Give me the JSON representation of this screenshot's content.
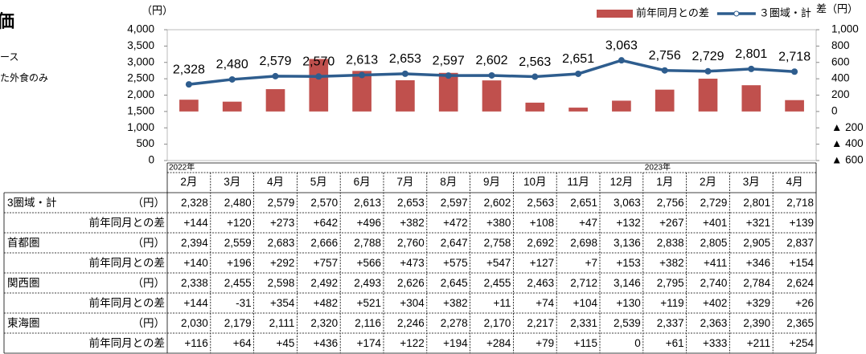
{
  "page_text": {
    "title_fragment": "価",
    "line1": "ース",
    "line2": "た外食のみ"
  },
  "chart_data": {
    "type": "combo",
    "legend": "top-right",
    "y_label": "（円）",
    "y2_label": "差（円）",
    "categories": [
      "2月",
      "3月",
      "4月",
      "5月",
      "6月",
      "7月",
      "8月",
      "9月",
      "10月",
      "11月",
      "12月",
      "1月",
      "2月",
      "3月",
      "4月"
    ],
    "ylim": [
      0,
      4000
    ],
    "yticks": [
      0,
      500,
      {
        "value": 1000,
        "label": "1,000"
      },
      {
        "value": 1500,
        "label": "1,500"
      },
      {
        "value": 2000,
        "label": "2,000"
      },
      {
        "value": 2500,
        "label": "2,500"
      },
      {
        "value": 3000,
        "label": "3,000"
      },
      {
        "value": 3500,
        "label": "3,500"
      },
      {
        "value": 4000,
        "label": "4,000"
      }
    ],
    "y2lim": [
      -600,
      1000
    ],
    "y2ticks": [
      {
        "value": -600,
        "label": "▲ 600"
      },
      {
        "value": -400,
        "label": "▲ 400"
      },
      {
        "value": -200,
        "label": "▲ 200"
      },
      0,
      200,
      400,
      600,
      800,
      {
        "value": 1000,
        "label": "1,000"
      }
    ],
    "series": [
      {
        "name": "前年同月との差",
        "type": "bar",
        "axis": "y2",
        "color": "#c0504d",
        "values": [
          144,
          120,
          273,
          642,
          496,
          382,
          472,
          380,
          108,
          47,
          132,
          267,
          401,
          321,
          139
        ]
      },
      {
        "name": "３圏域・計",
        "type": "line",
        "color": "#2e5d8e",
        "values": [
          2328,
          2480,
          2579,
          2570,
          2613,
          2653,
          2597,
          2602,
          2563,
          2651,
          3063,
          2756,
          2729,
          2801,
          2718
        ],
        "value_labels": [
          "2,328",
          "2,480",
          "2,579",
          "2,570",
          "2,613",
          "2,653",
          "2,597",
          "2,602",
          "2,563",
          "2,651",
          "3,063",
          "2,756",
          "2,729",
          "2,801",
          "2,718"
        ]
      }
    ]
  },
  "table": {
    "years": [
      "2022年",
      "2023年"
    ],
    "rows": [
      {
        "label": "3圏域・計",
        "unit": "（円）",
        "cells": [
          "2,328",
          "2,480",
          "2,579",
          "2,570",
          "2,613",
          "2,653",
          "2,597",
          "2,602",
          "2,563",
          "2,651",
          "3,063",
          "2,756",
          "2,729",
          "2,801",
          "2,718"
        ]
      },
      {
        "label": "前年同月との差",
        "cells": [
          "+144",
          "+120",
          "+273",
          "+642",
          "+496",
          "+382",
          "+472",
          "+380",
          "+108",
          "+47",
          "+132",
          "+267",
          "+401",
          "+321",
          "+139"
        ]
      },
      {
        "label": "首都圏",
        "unit": "（円）",
        "cells": [
          "2,394",
          "2,559",
          "2,683",
          "2,666",
          "2,788",
          "2,760",
          "2,647",
          "2,758",
          "2,692",
          "2,698",
          "3,136",
          "2,838",
          "2,805",
          "2,905",
          "2,837"
        ]
      },
      {
        "label": "前年同月との差",
        "cells": [
          "+140",
          "+196",
          "+292",
          "+757",
          "+566",
          "+473",
          "+575",
          "+547",
          "+127",
          "+7",
          "+153",
          "+382",
          "+411",
          "+346",
          "+154"
        ]
      },
      {
        "label": "関西圏",
        "unit": "（円）",
        "cells": [
          "2,338",
          "2,455",
          "2,598",
          "2,492",
          "2,493",
          "2,626",
          "2,645",
          "2,455",
          "2,463",
          "2,712",
          "3,146",
          "2,795",
          "2,740",
          "2,784",
          "2,624"
        ]
      },
      {
        "label": "前年同月との差",
        "cells": [
          "+144",
          "-31",
          "+354",
          "+482",
          "+521",
          "+304",
          "+382",
          "+11",
          "+74",
          "+104",
          "+130",
          "+119",
          "+402",
          "+329",
          "+26"
        ]
      },
      {
        "label": "東海圏",
        "unit": "（円）",
        "cells": [
          "2,030",
          "2,179",
          "2,111",
          "2,320",
          "2,116",
          "2,246",
          "2,278",
          "2,170",
          "2,217",
          "2,331",
          "2,539",
          "2,337",
          "2,363",
          "2,390",
          "2,365"
        ]
      },
      {
        "label": "前年同月との差",
        "cells": [
          "+116",
          "+64",
          "+45",
          "+436",
          "+174",
          "+122",
          "+194",
          "+284",
          "+79",
          "+115",
          "0",
          "+61",
          "+333",
          "+211",
          "+254"
        ]
      }
    ]
  }
}
